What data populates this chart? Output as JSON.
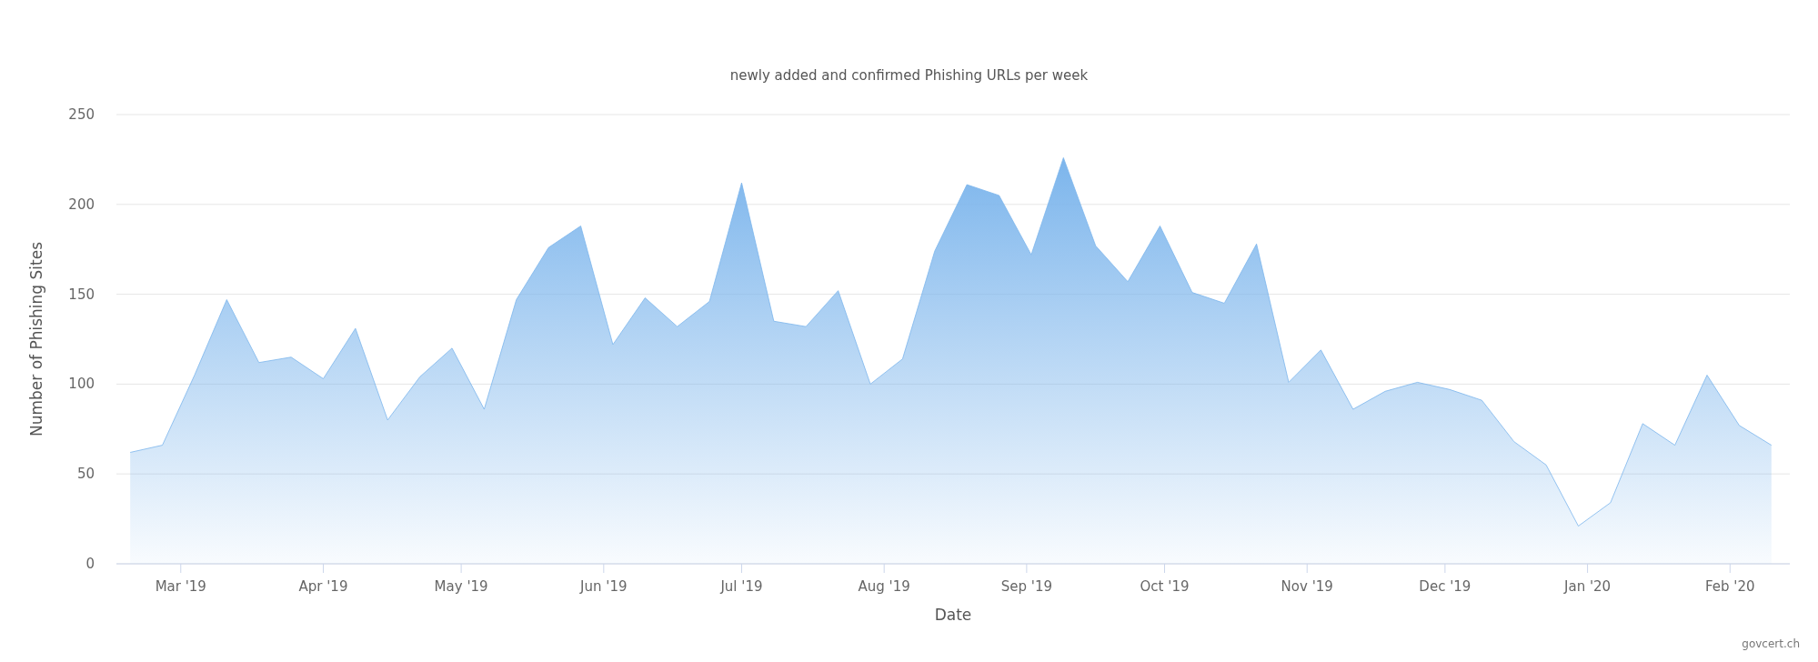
{
  "chart_data": {
    "type": "area",
    "subtitle": "newly added and confirmed Phishing URLs per week",
    "xlabel": "Date",
    "ylabel": "Number of Phishing Sites",
    "annotations": [
      "govcert.ch"
    ],
    "x": [
      "2019-02-18",
      "2019-02-25",
      "2019-03-04",
      "2019-03-11",
      "2019-03-18",
      "2019-03-25",
      "2019-04-01",
      "2019-04-08",
      "2019-04-15",
      "2019-04-22",
      "2019-04-29",
      "2019-05-06",
      "2019-05-13",
      "2019-05-20",
      "2019-05-27",
      "2019-06-03",
      "2019-06-10",
      "2019-06-17",
      "2019-06-24",
      "2019-07-01",
      "2019-07-08",
      "2019-07-15",
      "2019-07-22",
      "2019-07-29",
      "2019-08-05",
      "2019-08-12",
      "2019-08-19",
      "2019-08-26",
      "2019-09-02",
      "2019-09-09",
      "2019-09-16",
      "2019-09-23",
      "2019-09-30",
      "2019-10-07",
      "2019-10-14",
      "2019-10-21",
      "2019-10-28",
      "2019-11-04",
      "2019-11-11",
      "2019-11-18",
      "2019-11-25",
      "2019-12-02",
      "2019-12-09",
      "2019-12-16",
      "2019-12-23",
      "2019-12-30",
      "2020-01-06",
      "2020-01-13",
      "2020-01-20",
      "2020-01-27",
      "2020-02-03",
      "2020-02-10"
    ],
    "series": [
      {
        "color": "#7cb5ec",
        "values": [
          62,
          66,
          105,
          147,
          112,
          115,
          103,
          131,
          80,
          104,
          120,
          86,
          147,
          176,
          188,
          122,
          148,
          132,
          146,
          212,
          135,
          132,
          152,
          100,
          114,
          174,
          211,
          205,
          172,
          226,
          177,
          157,
          188,
          151,
          145,
          178,
          101,
          119,
          86,
          96,
          101,
          97,
          91,
          68,
          55,
          21,
          34,
          78,
          66,
          105,
          77,
          66
        ]
      }
    ],
    "xlim": [
      "2019-02-15",
      "2020-02-14"
    ],
    "xticks": [
      {
        "value": "2019-03-01",
        "label": "Mar '19"
      },
      {
        "value": "2019-04-01",
        "label": "Apr '19"
      },
      {
        "value": "2019-05-01",
        "label": "May '19"
      },
      {
        "value": "2019-06-01",
        "label": "Jun '19"
      },
      {
        "value": "2019-07-01",
        "label": "Jul '19"
      },
      {
        "value": "2019-08-01",
        "label": "Aug '19"
      },
      {
        "value": "2019-09-01",
        "label": "Sep '19"
      },
      {
        "value": "2019-10-01",
        "label": "Oct '19"
      },
      {
        "value": "2019-11-01",
        "label": "Nov '19"
      },
      {
        "value": "2019-12-01",
        "label": "Dec '19"
      },
      {
        "value": "2020-01-01",
        "label": "Jan '20"
      },
      {
        "value": "2020-02-01",
        "label": "Feb '20"
      }
    ],
    "ylim": [
      0,
      250
    ],
    "yticks": [
      0,
      50,
      100,
      150,
      200,
      250
    ],
    "grid": "y"
  }
}
